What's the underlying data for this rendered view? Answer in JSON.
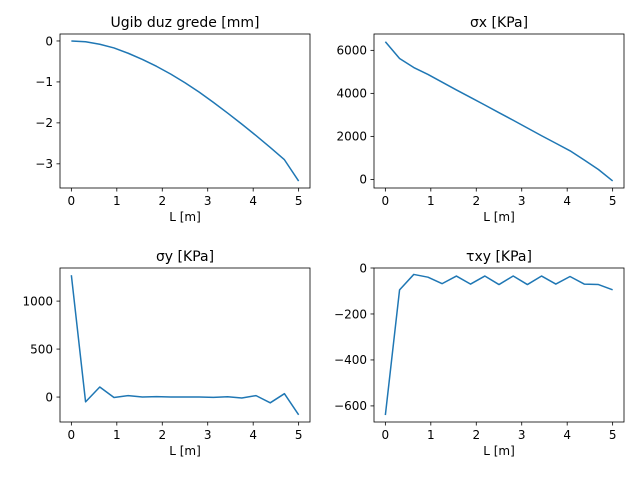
{
  "chart_data": [
    {
      "type": "line",
      "title": "Ugib duz grede [mm]",
      "xlabel": "L [m]",
      "ylabel": "",
      "xlim": [
        -0.25,
        5.25
      ],
      "ylim": [
        -3.59,
        0.17
      ],
      "xticks": [
        0,
        1,
        2,
        3,
        4,
        5
      ],
      "yticks": [
        -3,
        -2,
        -1,
        0
      ],
      "ytick_labels": [
        "−3",
        "−2",
        "−1",
        "0"
      ],
      "grid": false,
      "series": [
        {
          "color": "#1f77b4",
          "x": [
            0,
            0.3125,
            0.625,
            0.9375,
            1.25,
            1.5625,
            1.875,
            2.1875,
            2.5,
            2.8125,
            3.125,
            3.4375,
            3.75,
            4.0625,
            4.375,
            4.6875,
            5
          ],
          "y": [
            0,
            -0.02,
            -0.08,
            -0.17,
            -0.3,
            -0.45,
            -0.62,
            -0.81,
            -1.02,
            -1.25,
            -1.5,
            -1.76,
            -2.03,
            -2.31,
            -2.6,
            -2.9,
            -3.42
          ]
        }
      ]
    },
    {
      "type": "line",
      "title": "σx [KPa]",
      "xlabel": "L [m]",
      "ylabel": "",
      "xlim": [
        -0.25,
        5.25
      ],
      "ylim": [
        -400,
        6760
      ],
      "xticks": [
        0,
        1,
        2,
        3,
        4,
        5
      ],
      "yticks": [
        0,
        2000,
        4000,
        6000
      ],
      "ytick_labels": [
        "0",
        "2000",
        "4000",
        "6000"
      ],
      "grid": false,
      "series": [
        {
          "color": "#1f77b4",
          "x": [
            0,
            0.3125,
            0.625,
            0.9375,
            1.25,
            1.5625,
            1.875,
            2.1875,
            2.5,
            2.8125,
            3.125,
            3.4375,
            3.75,
            4.0625,
            4.375,
            4.6875,
            5
          ],
          "y": [
            6400,
            5620,
            5200,
            4880,
            4520,
            4160,
            3810,
            3460,
            3100,
            2750,
            2390,
            2030,
            1680,
            1330,
            900,
            460,
            -70
          ]
        }
      ]
    },
    {
      "type": "line",
      "title": "σy [KPa]",
      "xlabel": "L [m]",
      "ylabel": "",
      "xlim": [
        -0.25,
        5.25
      ],
      "ylim": [
        -260,
        1345
      ],
      "xticks": [
        0,
        1,
        2,
        3,
        4,
        5
      ],
      "yticks": [
        0,
        500,
        1000
      ],
      "ytick_labels": [
        "0",
        "500",
        "1000"
      ],
      "grid": false,
      "series": [
        {
          "color": "#1f77b4",
          "x": [
            0,
            0.3125,
            0.625,
            0.9375,
            1.25,
            1.5625,
            1.875,
            2.1875,
            2.5,
            2.8125,
            3.125,
            3.4375,
            3.75,
            4.0625,
            4.375,
            4.6875,
            5
          ],
          "y": [
            1270,
            -50,
            105,
            -5,
            15,
            0,
            5,
            0,
            0,
            0,
            -3,
            3,
            -10,
            15,
            -60,
            35,
            -185
          ]
        }
      ]
    },
    {
      "type": "line",
      "title": "τxy [KPa]",
      "xlabel": "L [m]",
      "ylabel": "",
      "xlim": [
        -0.25,
        5.25
      ],
      "ylim": [
        -670,
        0
      ],
      "xticks": [
        0,
        1,
        2,
        3,
        4,
        5
      ],
      "yticks": [
        -600,
        -400,
        -200,
        0
      ],
      "ytick_labels": [
        "−600",
        "−400",
        "−200",
        "0"
      ],
      "grid": false,
      "series": [
        {
          "color": "#1f77b4",
          "x": [
            0,
            0.3125,
            0.625,
            0.9375,
            1.25,
            1.5625,
            1.875,
            2.1875,
            2.5,
            2.8125,
            3.125,
            3.4375,
            3.75,
            4.0625,
            4.375,
            4.6875,
            5
          ],
          "y": [
            -640,
            -95,
            -28,
            -40,
            -68,
            -35,
            -70,
            -35,
            -72,
            -35,
            -72,
            -35,
            -70,
            -37,
            -70,
            -72,
            -95
          ]
        }
      ]
    }
  ]
}
